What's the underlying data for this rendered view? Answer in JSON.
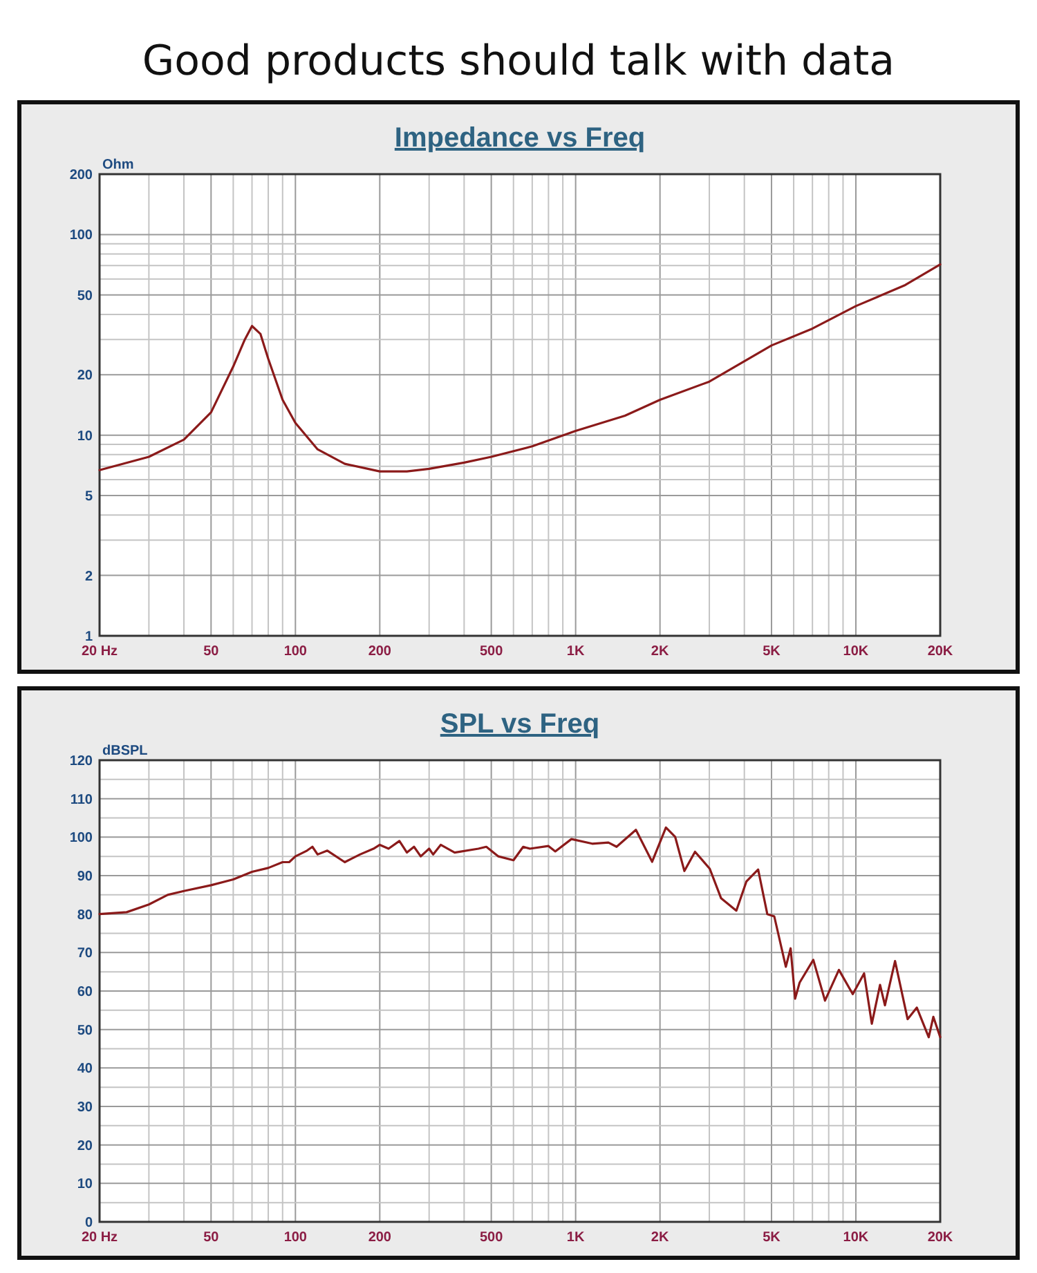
{
  "chart_data": [
    {
      "type": "other",
      "title": "Good products should talk with data"
    },
    {
      "type": "line",
      "title": "Impedance vs Freq",
      "ylabel": "Ohm",
      "log": "xy",
      "grid": true,
      "xlim": [
        20,
        20000
      ],
      "ylim": [
        1,
        200
      ],
      "xticks": [
        {
          "value": 20,
          "label": "20  Hz"
        },
        {
          "value": 30,
          "label": null
        },
        {
          "value": 40,
          "label": null
        },
        50,
        {
          "value": 60,
          "label": null
        },
        {
          "value": 70,
          "label": null
        },
        {
          "value": 80,
          "label": null
        },
        {
          "value": 90,
          "label": null
        },
        100,
        200,
        {
          "value": 300,
          "label": null
        },
        {
          "value": 400,
          "label": null
        },
        500,
        {
          "value": 600,
          "label": null
        },
        {
          "value": 700,
          "label": null
        },
        {
          "value": 800,
          "label": null
        },
        {
          "value": 900,
          "label": null
        },
        {
          "value": 1000,
          "label": "1K"
        },
        {
          "value": 2000,
          "label": "2K"
        },
        {
          "value": 3000,
          "label": null
        },
        {
          "value": 4000,
          "label": null
        },
        {
          "value": 5000,
          "label": "5K"
        },
        {
          "value": 6000,
          "label": null
        },
        {
          "value": 7000,
          "label": null
        },
        {
          "value": 8000,
          "label": null
        },
        {
          "value": 9000,
          "label": null
        },
        {
          "value": 10000,
          "label": "10K"
        },
        {
          "value": 20000,
          "label": "20K"
        }
      ],
      "yticks": [
        1,
        2,
        {
          "value": 3,
          "label": null
        },
        {
          "value": 4,
          "label": null
        },
        5,
        {
          "value": 6,
          "label": null
        },
        {
          "value": 7,
          "label": null
        },
        {
          "value": 8,
          "label": null
        },
        {
          "value": 9,
          "label": null
        },
        10,
        20,
        {
          "value": 30,
          "label": null
        },
        {
          "value": 40,
          "label": null
        },
        50,
        {
          "value": 60,
          "label": null
        },
        {
          "value": 70,
          "label": null
        },
        {
          "value": 80,
          "label": null
        },
        {
          "value": 90,
          "label": null
        },
        100,
        200
      ],
      "series": [
        {
          "color": "#8b1a1a",
          "x": [
            20,
            30,
            40,
            50,
            60,
            66,
            70,
            75,
            80,
            90,
            100,
            120,
            150,
            200,
            250,
            300,
            400,
            500,
            700,
            1000,
            1500,
            2000,
            3000,
            5000,
            7000,
            10000,
            15000,
            20000
          ],
          "values": [
            6.7,
            7.8,
            9.5,
            13,
            22,
            30,
            35,
            32,
            24,
            15,
            11.5,
            8.5,
            7.2,
            6.6,
            6.6,
            6.8,
            7.3,
            7.8,
            8.8,
            10.5,
            12.5,
            15,
            18.5,
            28,
            34,
            44,
            56,
            71
          ]
        }
      ]
    },
    {
      "type": "line",
      "title": "SPL vs Freq",
      "ylabel": "dBSPL",
      "log": "x",
      "grid": true,
      "xlim": [
        20,
        20000
      ],
      "ylim": [
        0,
        120
      ],
      "xticks": [
        {
          "value": 20,
          "label": "20  Hz"
        },
        {
          "value": 30,
          "label": null
        },
        {
          "value": 40,
          "label": null
        },
        50,
        {
          "value": 60,
          "label": null
        },
        {
          "value": 70,
          "label": null
        },
        {
          "value": 80,
          "label": null
        },
        {
          "value": 90,
          "label": null
        },
        100,
        200,
        {
          "value": 300,
          "label": null
        },
        {
          "value": 400,
          "label": null
        },
        500,
        {
          "value": 600,
          "label": null
        },
        {
          "value": 700,
          "label": null
        },
        {
          "value": 800,
          "label": null
        },
        {
          "value": 900,
          "label": null
        },
        {
          "value": 1000,
          "label": "1K"
        },
        {
          "value": 2000,
          "label": "2K"
        },
        {
          "value": 3000,
          "label": null
        },
        {
          "value": 4000,
          "label": null
        },
        {
          "value": 5000,
          "label": "5K"
        },
        {
          "value": 6000,
          "label": null
        },
        {
          "value": 7000,
          "label": null
        },
        {
          "value": 8000,
          "label": null
        },
        {
          "value": 9000,
          "label": null
        },
        {
          "value": 10000,
          "label": "10K"
        },
        {
          "value": 20000,
          "label": "20K"
        }
      ],
      "yticks": [
        0,
        {
          "value": 5,
          "label": null
        },
        10,
        {
          "value": 15,
          "label": null
        },
        20,
        {
          "value": 25,
          "label": null
        },
        30,
        {
          "value": 35,
          "label": null
        },
        40,
        {
          "value": 45,
          "label": null
        },
        50,
        {
          "value": 55,
          "label": null
        },
        60,
        {
          "value": 65,
          "label": null
        },
        70,
        {
          "value": 75,
          "label": null
        },
        80,
        {
          "value": 85,
          "label": null
        },
        90,
        {
          "value": 95,
          "label": null
        },
        100,
        {
          "value": 105,
          "label": null
        },
        110,
        {
          "value": 115,
          "label": null
        },
        120
      ],
      "series": [
        {
          "color": "#8b1a1a",
          "x": [
            20,
            25,
            30,
            35,
            40,
            50,
            60,
            70,
            80,
            90,
            95,
            100,
            110,
            115,
            120,
            130,
            150,
            170,
            190,
            200,
            215,
            235,
            250,
            265,
            280,
            300,
            310,
            330,
            370,
            450,
            480,
            530,
            600,
            650,
            687,
            800,
            846,
            966,
            1146,
            1309,
            1400,
            1641,
            1875,
            2100,
            2265,
            2444,
            2667,
            3010,
            3305,
            3745,
            4070,
            4480,
            4830,
            5115,
            5625,
            5850,
            6070,
            6300,
            7050,
            7760,
            8700,
            9750,
            10700,
            11400,
            12200,
            12700,
            13800,
            15300,
            16500,
            18200,
            18900,
            20000
          ],
          "values": [
            80,
            80.5,
            82.5,
            85,
            86,
            87.5,
            89,
            91,
            92,
            93.5,
            93.5,
            95,
            96.5,
            97.5,
            95.5,
            96.5,
            93.5,
            95.5,
            97,
            98,
            97,
            99,
            96,
            97.5,
            95,
            97,
            95.5,
            98,
            96,
            97,
            97.5,
            95,
            94,
            97.5,
            97,
            97.7,
            96.3,
            99.5,
            98.3,
            98.6,
            97.5,
            101.9,
            93.6,
            102.5,
            100.1,
            91.2,
            96.2,
            91.8,
            84.1,
            80.9,
            88.5,
            91.6,
            80,
            79.4,
            66.3,
            71.1,
            58,
            62.2,
            68.1,
            57.5,
            65.5,
            59.2,
            64.6,
            51.5,
            61.6,
            56.3,
            67.8,
            52.7,
            55.7,
            48,
            53.3,
            48
          ]
        }
      ]
    }
  ]
}
